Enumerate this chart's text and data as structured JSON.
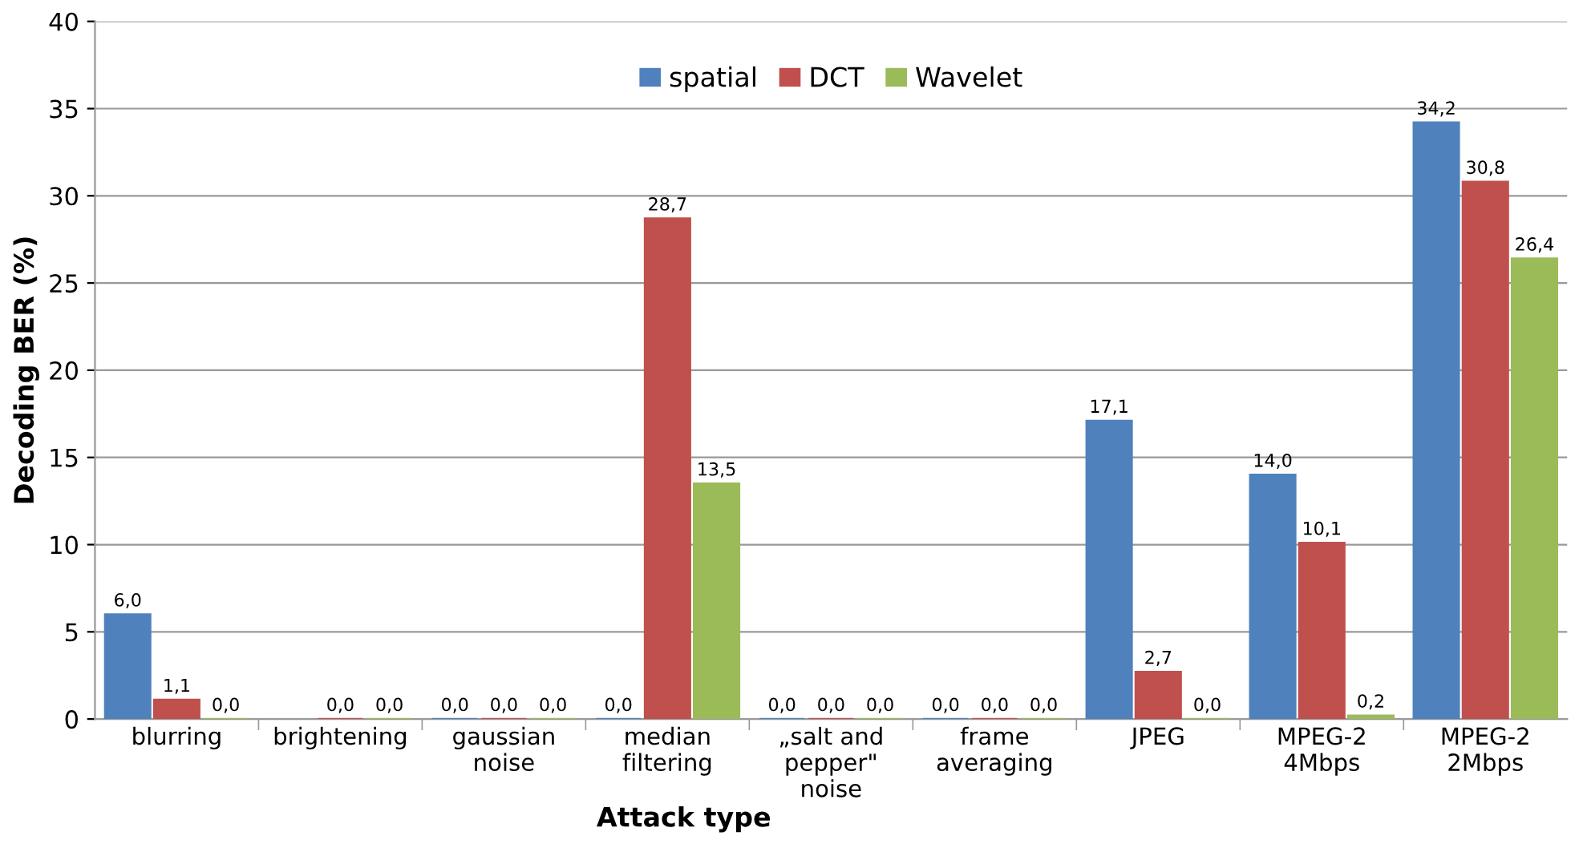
{
  "chart_data": {
    "type": "bar",
    "xlabel": "Attack type",
    "ylabel": "Decoding BER (%)",
    "categories": [
      "blurring",
      "brightening",
      "gaussian\nnoise",
      "median\nfiltering",
      "„salt and\npepper\"\nnoise",
      "frame\naveraging",
      "JPEG",
      "MPEG-2\n4Mbps",
      "MPEG-2\n2Mbps"
    ],
    "series": [
      {
        "name": "spatial",
        "color": "#4f81bd",
        "values": [
          6.0,
          null,
          0.0,
          0.0,
          0.0,
          0.0,
          17.1,
          14.0,
          34.2
        ],
        "value_labels": [
          "6,0",
          null,
          "0,0",
          "0,0",
          "0,0",
          "0,0",
          "17,1",
          "14,0",
          "34,2"
        ]
      },
      {
        "name": "DCT",
        "color": "#c0504d",
        "values": [
          1.1,
          0.0,
          0.0,
          28.7,
          0.0,
          0.0,
          2.7,
          10.1,
          30.8
        ],
        "value_labels": [
          "1,1",
          "0,0",
          "0,0",
          "28,7",
          "0,0",
          "0,0",
          "2,7",
          "10,1",
          "30,8"
        ]
      },
      {
        "name": "Wavelet",
        "color": "#9bbb59",
        "values": [
          0.0,
          0.0,
          0.0,
          13.5,
          0.0,
          0.0,
          0.0,
          0.2,
          26.4
        ],
        "value_labels": [
          "0,0",
          "0,0",
          "0,0",
          "13,5",
          "0,0",
          "0,0",
          "0,0",
          "0,2",
          "26,4"
        ]
      }
    ],
    "ylim": [
      0,
      40
    ],
    "yticks": [
      0,
      5,
      10,
      15,
      20,
      25,
      30,
      35,
      40
    ],
    "grid": "y",
    "legend": "top"
  }
}
